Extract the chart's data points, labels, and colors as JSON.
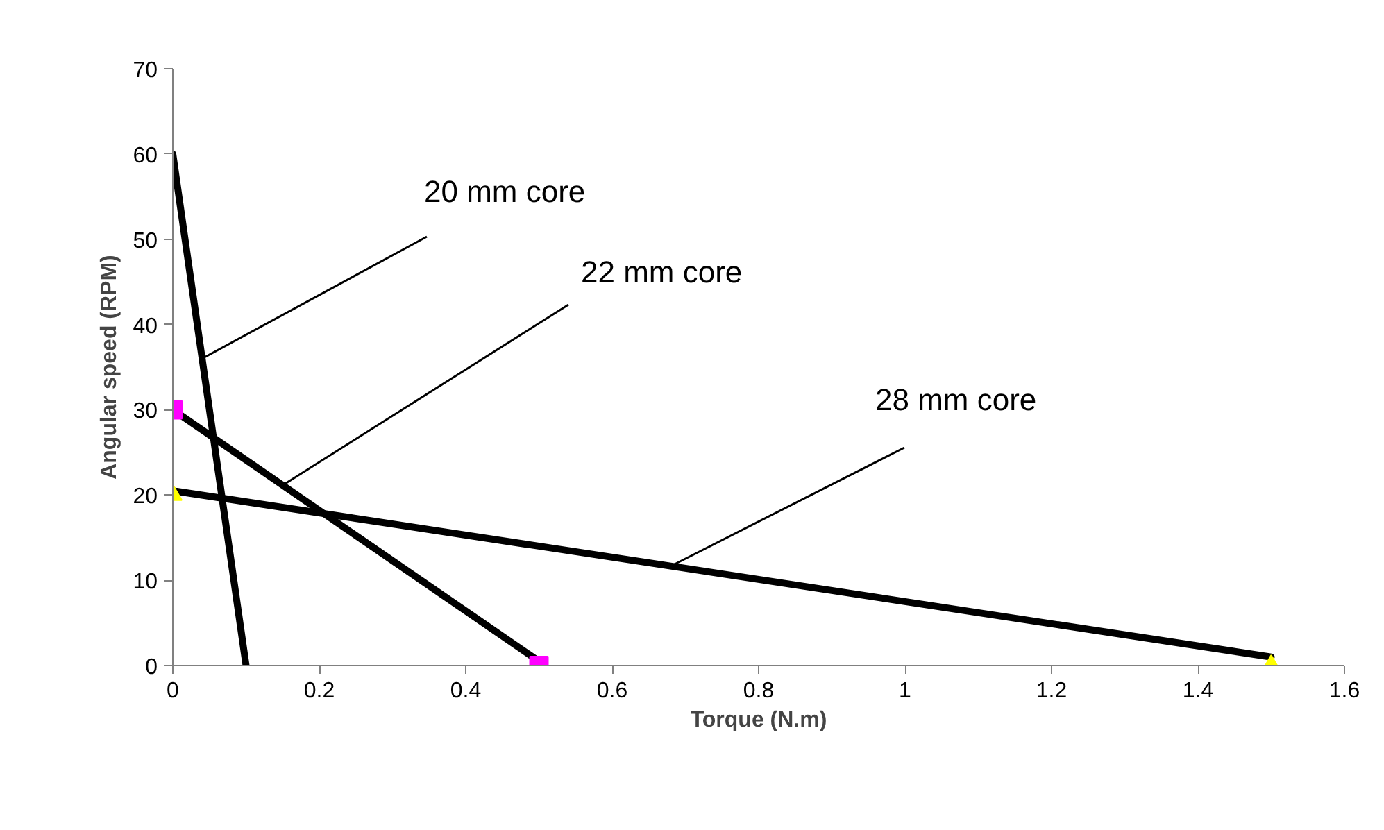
{
  "chart_data": {
    "type": "scatter",
    "xlabel": "Torque (N.m)",
    "ylabel": "Angular speed (RPM)",
    "xlim": [
      0,
      1.6
    ],
    "ylim": [
      0,
      70
    ],
    "xticks": [
      0,
      0.2,
      0.4,
      0.6,
      0.8,
      1,
      1.2,
      1.4,
      1.6
    ],
    "yticks": [
      0,
      10,
      20,
      30,
      40,
      50,
      60,
      70
    ],
    "grid": false,
    "series": [
      {
        "type": "line",
        "color": "#000000",
        "x": [
          0,
          0.1
        ],
        "values": [
          60,
          0
        ],
        "marker": "none"
      },
      {
        "type": "line",
        "color": "#000000",
        "x": [
          0,
          0.5
        ],
        "values": [
          30,
          0.5
        ],
        "marker": "none"
      },
      {
        "type": "line",
        "color": "#000000",
        "x": [
          0,
          1.5
        ],
        "values": [
          20.5,
          1
        ],
        "marker": "none"
      },
      {
        "color": "#ff00ff",
        "x": [
          0,
          0.5
        ],
        "values": [
          30,
          0
        ],
        "marker": "square"
      },
      {
        "color": "#ffff00",
        "x": [
          0,
          1.5
        ],
        "values": [
          20,
          0
        ],
        "marker": "triangle"
      }
    ],
    "annotations": [
      {
        "text": "20 mm core",
        "x": 0.04,
        "y": 36
      },
      {
        "text": "22 mm core",
        "x": 0.15,
        "y": 21.15
      },
      {
        "text": "28 mm core",
        "x": 0.68,
        "y": 11.66
      }
    ]
  }
}
